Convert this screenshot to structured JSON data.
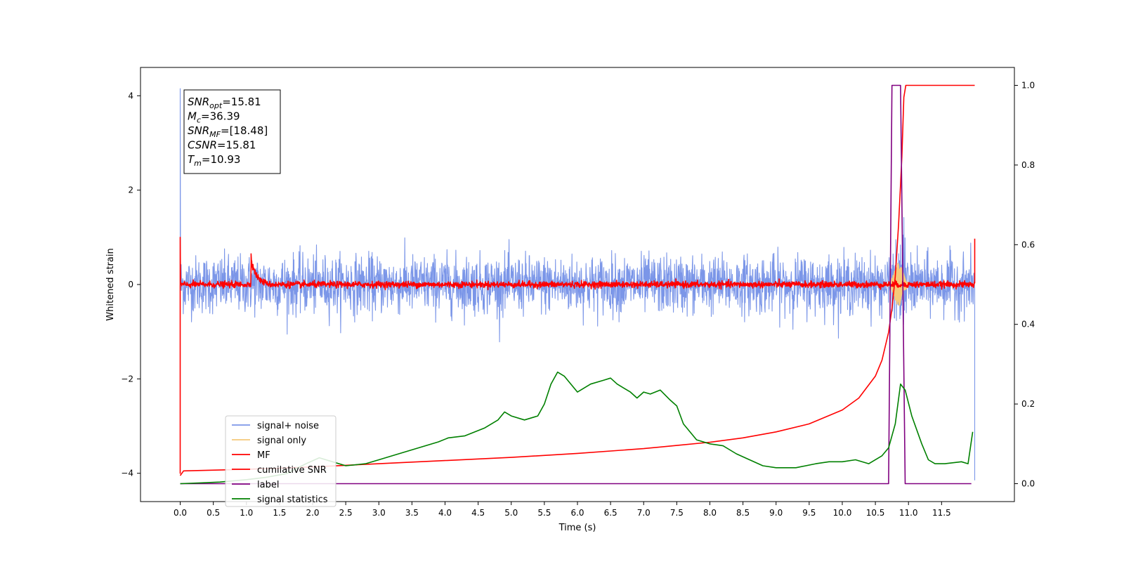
{
  "chart_data": {
    "type": "line",
    "title": "",
    "xlabel": "Time (s)",
    "ylabel": "Whitened strain",
    "ylabel_right": "",
    "xlim": [
      -0.6,
      12.6
    ],
    "ylim": [
      -4.6,
      4.6
    ],
    "ylim_right": [
      -0.045,
      1.045
    ],
    "x_ticks": [
      0.0,
      0.5,
      1.0,
      1.5,
      2.0,
      2.5,
      3.0,
      3.5,
      4.0,
      4.5,
      5.0,
      5.5,
      6.0,
      6.5,
      7.0,
      7.5,
      8.0,
      8.5,
      9.0,
      9.5,
      10.0,
      10.5,
      11.0,
      11.5
    ],
    "x_tick_labels": [
      "0.0",
      "0.5",
      "1.0",
      "1.5",
      "2.0",
      "2.5",
      "3.0",
      "3.5",
      "4.0",
      "4.5",
      "5.0",
      "5.5",
      "6.0",
      "6.5",
      "7.0",
      "7.5",
      "8.0",
      "8.5",
      "9.0",
      "9.5",
      "10.0",
      "10.5",
      "11.0",
      "11.5"
    ],
    "y_ticks": [
      -4,
      -2,
      0,
      2,
      4
    ],
    "y_tick_labels": [
      "−4",
      "−2",
      "0",
      "2",
      "4"
    ],
    "y_right_ticks": [
      0.0,
      0.2,
      0.4,
      0.6,
      0.8,
      1.0
    ],
    "y_right_tick_labels": [
      "0.0",
      "0.2",
      "0.4",
      "0.6",
      "0.8",
      "1.0"
    ],
    "legend_position": "lower-left",
    "grid": false,
    "annotation_lines": [
      {
        "base": "SNR",
        "sub": "opt",
        "value": "=15.81"
      },
      {
        "base": "M",
        "sub": "c",
        "value": "=36.39"
      },
      {
        "base": "SNR",
        "sub": "MF",
        "value": "=[18.48]"
      },
      {
        "base": "CSNR",
        "sub": "",
        "value": "=15.81"
      },
      {
        "base": "T",
        "sub": "m",
        "value": "=10.93"
      }
    ],
    "series": [
      {
        "name": "signal+ noise",
        "color": "#7b96e8",
        "axis": "left",
        "kind": "noise",
        "amplitude": 0.55,
        "x_range": [
          0.0,
          12.0
        ],
        "spikes": [
          {
            "x": 0.0,
            "y": 4.15
          },
          {
            "x": 10.93,
            "y": 1.42
          },
          {
            "x": 12.0,
            "y": -4.15
          }
        ]
      },
      {
        "name": "signal only",
        "color": "#f5c97a",
        "axis": "left",
        "kind": "chirp",
        "x_range": [
          9.5,
          11.0
        ],
        "peak_x": 10.85,
        "peak_amplitude": 0.45
      },
      {
        "name": "MF",
        "color": "#ff0000",
        "axis": "left",
        "kind": "noise",
        "amplitude": 0.06,
        "x_range": [
          0.0,
          12.0
        ],
        "spikes": [
          {
            "x": 0.0,
            "y": 1.0
          },
          {
            "x": 0.0,
            "y": -4.0
          },
          {
            "x": 1.07,
            "y": 0.65
          },
          {
            "x": 12.0,
            "y": 0.97
          }
        ]
      },
      {
        "name": "cumilative SNR",
        "color": "#ff0000",
        "axis": "right",
        "x": [
          0.0,
          0.05,
          1.0,
          2.0,
          3.0,
          4.0,
          5.0,
          6.0,
          7.0,
          7.5,
          8.0,
          8.5,
          9.0,
          9.5,
          10.0,
          10.25,
          10.5,
          10.6,
          10.7,
          10.75,
          10.8,
          10.85,
          10.9,
          10.93,
          10.96,
          12.0
        ],
        "y": [
          0.02,
          0.032,
          0.036,
          0.042,
          0.05,
          0.058,
          0.066,
          0.076,
          0.088,
          0.096,
          0.104,
          0.115,
          0.13,
          0.15,
          0.185,
          0.215,
          0.27,
          0.31,
          0.38,
          0.44,
          0.52,
          0.65,
          0.82,
          0.97,
          1.0,
          1.0
        ]
      },
      {
        "name": "label",
        "color": "#800080",
        "axis": "right",
        "x": [
          0.0,
          10.7,
          10.75,
          10.88,
          10.95,
          11.95
        ],
        "y": [
          0.0,
          0.0,
          1.0,
          1.0,
          0.0,
          0.0
        ]
      },
      {
        "name": "signal statistics",
        "color": "#008000",
        "axis": "right",
        "x": [
          0.0,
          0.3,
          0.6,
          1.0,
          1.3,
          1.6,
          1.9,
          2.1,
          2.3,
          2.5,
          2.8,
          3.0,
          3.3,
          3.6,
          3.9,
          4.05,
          4.3,
          4.6,
          4.8,
          4.9,
          5.0,
          5.2,
          5.4,
          5.5,
          5.6,
          5.7,
          5.8,
          5.9,
          6.0,
          6.2,
          6.4,
          6.5,
          6.6,
          6.8,
          6.9,
          7.0,
          7.1,
          7.25,
          7.4,
          7.5,
          7.6,
          7.8,
          8.0,
          8.2,
          8.4,
          8.6,
          8.8,
          9.0,
          9.3,
          9.6,
          9.8,
          10.0,
          10.2,
          10.4,
          10.6,
          10.7,
          10.8,
          10.88,
          10.95,
          11.05,
          11.2,
          11.3,
          11.4,
          11.55,
          11.8,
          11.9,
          11.97
        ],
        "y": [
          0.0,
          0.002,
          0.004,
          0.01,
          0.016,
          0.025,
          0.05,
          0.065,
          0.055,
          0.045,
          0.05,
          0.06,
          0.075,
          0.09,
          0.105,
          0.115,
          0.12,
          0.14,
          0.16,
          0.18,
          0.17,
          0.16,
          0.17,
          0.2,
          0.25,
          0.28,
          0.27,
          0.25,
          0.23,
          0.25,
          0.26,
          0.265,
          0.25,
          0.23,
          0.215,
          0.23,
          0.225,
          0.235,
          0.21,
          0.195,
          0.15,
          0.11,
          0.1,
          0.095,
          0.075,
          0.06,
          0.045,
          0.04,
          0.04,
          0.05,
          0.055,
          0.055,
          0.06,
          0.05,
          0.07,
          0.09,
          0.15,
          0.25,
          0.235,
          0.17,
          0.1,
          0.06,
          0.05,
          0.05,
          0.055,
          0.05,
          0.13
        ]
      }
    ]
  }
}
